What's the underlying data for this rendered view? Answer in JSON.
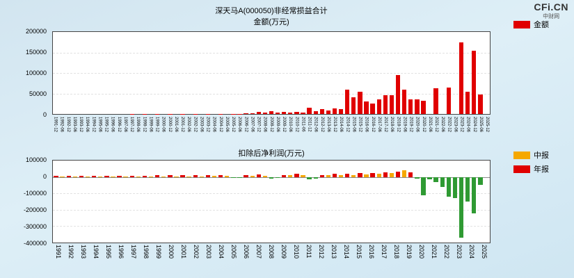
{
  "logo": {
    "text": "CFi.CN",
    "subtext": "中财网"
  },
  "colors": {
    "red": "#e00000",
    "orange": "#f5a800",
    "green": "#2f9a33",
    "plot_border": "#444444"
  },
  "chart_data": [
    {
      "type": "bar",
      "title": "深天马A(000050)非经常损益合计",
      "subtitle": "金额(万元)",
      "ylabel": "金额(万元)",
      "ylim": [
        0,
        200000
      ],
      "yticks": [
        200000,
        150000,
        100000,
        50000,
        0
      ],
      "legend": [
        {
          "label": "金额",
          "color": "#e00000"
        }
      ],
      "bar_color": "#e00000",
      "x": [
        "1991-12",
        "1992-06",
        "1992-12",
        "1993-06",
        "1993-12",
        "1994-06",
        "1994-12",
        "1995-06",
        "1995-12",
        "1996-06",
        "1996-12",
        "1997-06",
        "1997-12",
        "1998-06",
        "1998-12",
        "1999-06",
        "1999-12",
        "2000-06",
        "2000-12",
        "2001-06",
        "2001-12",
        "2002-06",
        "2002-12",
        "2003-06",
        "2003-12",
        "2004-06",
        "2004-12",
        "2005-06",
        "2005-12",
        "2006-06",
        "2006-12",
        "2007-06",
        "2007-12",
        "2008-06",
        "2008-12",
        "2009-06",
        "2009-12",
        "2010-06",
        "2010-12",
        "2011-06",
        "2011-12",
        "2012-06",
        "2012-12",
        "2013-06",
        "2013-12",
        "2014-06",
        "2014-12",
        "2015-06",
        "2015-12",
        "2016-06",
        "2016-12",
        "2017-06",
        "2017-12",
        "2018-06",
        "2018-12",
        "2019-06",
        "2019-12",
        "2020-06",
        "2020-12",
        "2021-06",
        "2021-12",
        "2022-06",
        "2022-12",
        "2023-06",
        "2023-12",
        "2024-06",
        "2024-12",
        "2025-06",
        "2025-12"
      ],
      "values": [
        0,
        0,
        0,
        0,
        0,
        0,
        0,
        0,
        0,
        0,
        0,
        0,
        300,
        0,
        300,
        0,
        400,
        0,
        500,
        0,
        500,
        0,
        500,
        0,
        600,
        0,
        800,
        0,
        800,
        500,
        1500,
        2000,
        5000,
        3000,
        6000,
        3000,
        5000,
        3000,
        5000,
        4000,
        15000,
        6000,
        12000,
        8000,
        13000,
        12000,
        60000,
        40000,
        55000,
        30000,
        25000,
        35000,
        45000,
        45000,
        95000,
        60000,
        35000,
        35000,
        32000,
        0,
        62000,
        0,
        65000,
        0,
        175000,
        55000,
        155000,
        48000,
        0
      ]
    },
    {
      "type": "bar",
      "title": "扣除后净利润(万元)",
      "subtitle": "",
      "ylim": [
        -400000,
        100000
      ],
      "yticks": [
        100000,
        0,
        -100000,
        -200000,
        -300000,
        -400000
      ],
      "legend": [
        {
          "label": "中报",
          "color": "#f5a800"
        },
        {
          "label": "年报",
          "color": "#e00000"
        }
      ],
      "interim_color": "#f5a800",
      "annual_color": "#e00000",
      "negative_color": "#2f9a33",
      "x": [
        "1991-12",
        "1992-06",
        "1992-12",
        "1993-06",
        "1993-12",
        "1994-06",
        "1994-12",
        "1995-06",
        "1995-12",
        "1996-06",
        "1996-12",
        "1997-06",
        "1997-12",
        "1998-06",
        "1998-12",
        "1999-06",
        "1999-12",
        "2000-06",
        "2000-12",
        "2001-06",
        "2001-12",
        "2002-06",
        "2002-12",
        "2003-06",
        "2003-12",
        "2004-06",
        "2004-12",
        "2005-06",
        "2005-12",
        "2006-06",
        "2006-12",
        "2007-06",
        "2007-12",
        "2008-06",
        "2008-12",
        "2009-06",
        "2009-12",
        "2010-06",
        "2010-12",
        "2011-06",
        "2011-12",
        "2012-06",
        "2012-12",
        "2013-06",
        "2013-12",
        "2014-06",
        "2014-12",
        "2015-06",
        "2015-12",
        "2016-06",
        "2016-12",
        "2017-06",
        "2017-12",
        "2018-06",
        "2018-12",
        "2019-06",
        "2019-12",
        "2020-06",
        "2020-12",
        "2021-06",
        "2021-12",
        "2022-06",
        "2022-12",
        "2023-06",
        "2023-12",
        "2024-06",
        "2024-12",
        "2025-06",
        "2025-12"
      ],
      "xlabels_shown": [
        "1991",
        "1992",
        "1993",
        "1994",
        "1995",
        "1996",
        "1997",
        "1998",
        "1999",
        "2000",
        "2001",
        "2002",
        "2003",
        "2004",
        "2005",
        "2006",
        "2007",
        "2008",
        "2009",
        "2010",
        "2011",
        "2012",
        "2013",
        "2014",
        "2015",
        "2016",
        "2017",
        "2018",
        "2019",
        "2020",
        "2021",
        "2022",
        "2023",
        "2024",
        "2025"
      ],
      "values": [
        6000,
        2500,
        7000,
        3000,
        8000,
        2500,
        6000,
        2000,
        5000,
        2000,
        6000,
        3000,
        8000,
        3000,
        8000,
        3000,
        9000,
        3500,
        10000,
        4000,
        10000,
        4000,
        10000,
        4500,
        11000,
        5000,
        12000,
        5000,
        -8000,
        -5000,
        9000,
        7000,
        14000,
        7000,
        -12000,
        -8000,
        10000,
        12000,
        20000,
        9000,
        -15000,
        -10000,
        12000,
        9000,
        18000,
        10000,
        20000,
        12000,
        22000,
        14000,
        25000,
        18000,
        30000,
        22000,
        32000,
        40000,
        28000,
        -12000,
        -110000,
        -15000,
        -30000,
        -60000,
        -120000,
        -130000,
        -370000,
        -150000,
        -220000,
        -50000,
        0
      ]
    }
  ]
}
